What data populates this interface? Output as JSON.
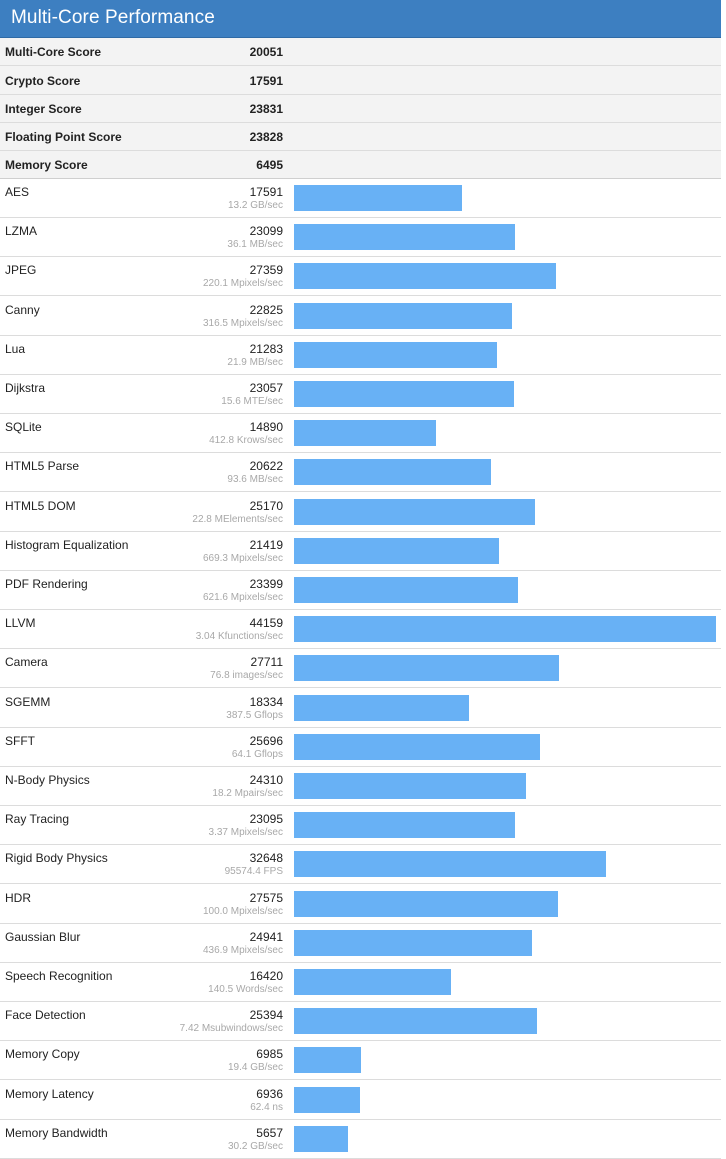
{
  "header": {
    "title": "Multi-Core Performance"
  },
  "summary": [
    {
      "label": "Multi-Core Score",
      "value": "20051"
    },
    {
      "label": "Crypto Score",
      "value": "17591"
    },
    {
      "label": "Integer Score",
      "value": "23831"
    },
    {
      "label": "Floating Point Score",
      "value": "23828"
    },
    {
      "label": "Memory Score",
      "value": "6495"
    }
  ],
  "colors": {
    "header": "#3d7fc1",
    "bar": "#68b1f5",
    "summary_bg": "#f3f3f3"
  },
  "chart_data": {
    "type": "bar",
    "orientation": "horizontal",
    "title": "Multi-Core Performance",
    "xlim": [
      0,
      44159
    ],
    "categories": [
      "AES",
      "LZMA",
      "JPEG",
      "Canny",
      "Lua",
      "Dijkstra",
      "SQLite",
      "HTML5 Parse",
      "HTML5 DOM",
      "Histogram Equalization",
      "PDF Rendering",
      "LLVM",
      "Camera",
      "SGEMM",
      "SFFT",
      "N-Body Physics",
      "Ray Tracing",
      "Rigid Body Physics",
      "HDR",
      "Gaussian Blur",
      "Speech Recognition",
      "Face Detection",
      "Memory Copy",
      "Memory Latency",
      "Memory Bandwidth"
    ],
    "values": [
      17591,
      23099,
      27359,
      22825,
      21283,
      23057,
      14890,
      20622,
      25170,
      21419,
      23399,
      44159,
      27711,
      18334,
      25696,
      24310,
      23095,
      32648,
      27575,
      24941,
      16420,
      25394,
      6985,
      6936,
      5657
    ],
    "rates": [
      "13.2 GB/sec",
      "36.1 MB/sec",
      "220.1 Mpixels/sec",
      "316.5 Mpixels/sec",
      "21.9 MB/sec",
      "15.6 MTE/sec",
      "412.8 Krows/sec",
      "93.6 MB/sec",
      "22.8 MElements/sec",
      "669.3 Mpixels/sec",
      "621.6 Mpixels/sec",
      "3.04 Kfunctions/sec",
      "76.8 images/sec",
      "387.5 Gflops",
      "64.1 Gflops",
      "18.2 Mpairs/sec",
      "3.37 Mpixels/sec",
      "95574.4 FPS",
      "100.0 Mpixels/sec",
      "436.9 Mpixels/sec",
      "140.5 Words/sec",
      "7.42 Msubwindows/sec",
      "19.4 GB/sec",
      "62.4 ns",
      "30.2 GB/sec"
    ]
  }
}
